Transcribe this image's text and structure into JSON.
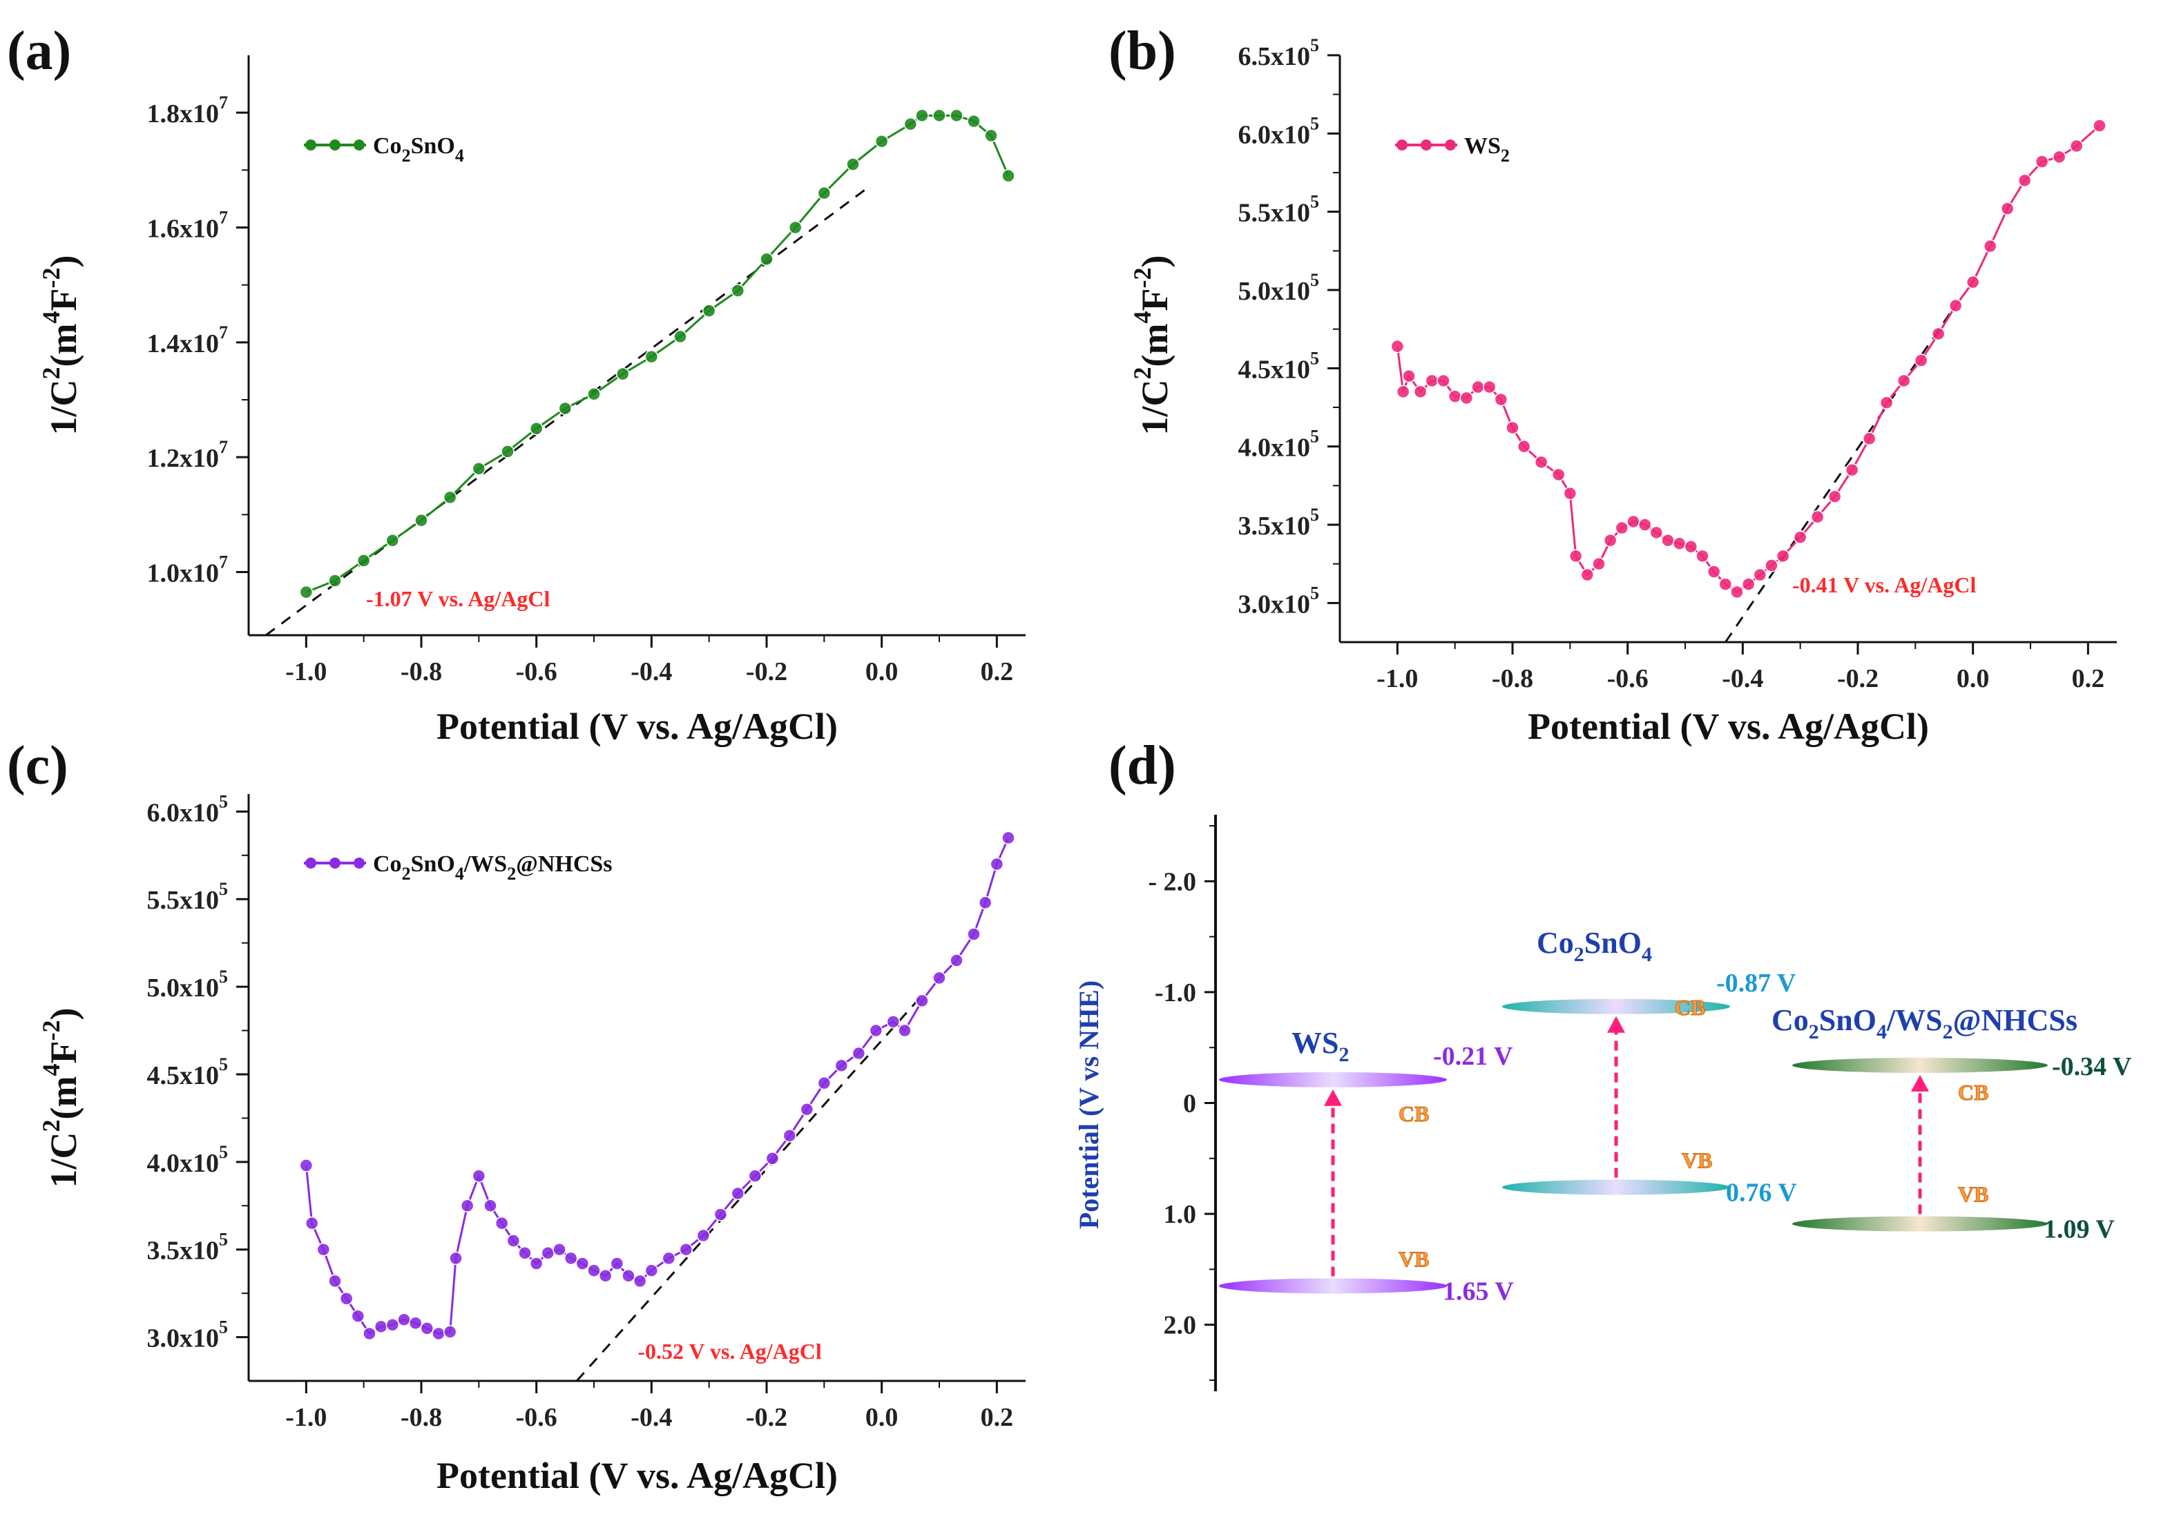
{
  "figure_labels": [
    "(a)",
    "(b)",
    "(c)",
    "(d)"
  ],
  "x_axis_label": "Potential (V vs. Ag/AgCl)",
  "chart_data": [
    {
      "type": "scatter",
      "panel": "(a)",
      "title": "",
      "xlabel": "Potential (V vs. Ag/AgCl)",
      "ylabel": "1/C^2 (m^4F^-2)",
      "xlim": [
        -1.1,
        0.25
      ],
      "ylim": [
        8900000.0,
        19000000.0
      ],
      "xticks": [
        -1.0,
        -0.8,
        -0.6,
        -0.4,
        -0.2,
        0.0,
        0.2
      ],
      "xtick_labels": [
        "-1.0",
        "-0.8",
        "-0.6",
        "-0.4",
        "-0.2",
        "0.0",
        "0.2"
      ],
      "yticks": [
        10000000.0,
        12000000.0,
        14000000.0,
        16000000.0,
        18000000.0
      ],
      "ytick_labels": [
        {
          "m": "1.0x10",
          "e": "7"
        },
        {
          "m": "1.2x10",
          "e": "7"
        },
        {
          "m": "1.4x10",
          "e": "7"
        },
        {
          "m": "1.6x10",
          "e": "7"
        },
        {
          "m": "1.8x10",
          "e": "7"
        }
      ],
      "series": [
        {
          "name": "Co2SnO4",
          "legend": {
            "base": "Co",
            "sub1": "2",
            "mid": "SnO",
            "sub2": "4"
          },
          "color": "#1e8a1e",
          "points": [
            [
              -1.0,
              9650000.0
            ],
            [
              -0.95,
              9850000.0
            ],
            [
              -0.9,
              10200000.0
            ],
            [
              -0.85,
              10550000.0
            ],
            [
              -0.8,
              10900000.0
            ],
            [
              -0.75,
              11300000.0
            ],
            [
              -0.7,
              11800000.0
            ],
            [
              -0.65,
              12100000.0
            ],
            [
              -0.6,
              12500000.0
            ],
            [
              -0.55,
              12850000.0
            ],
            [
              -0.5,
              13100000.0
            ],
            [
              -0.45,
              13450000.0
            ],
            [
              -0.4,
              13750000.0
            ],
            [
              -0.35,
              14100000.0
            ],
            [
              -0.3,
              14550000.0
            ],
            [
              -0.25,
              14900000.0
            ],
            [
              -0.2,
              15450000.0
            ],
            [
              -0.15,
              16000000.0
            ],
            [
              -0.1,
              16600000.0
            ],
            [
              -0.05,
              17100000.0
            ],
            [
              0.0,
              17500000.0
            ],
            [
              0.05,
              17800000.0
            ],
            [
              0.07,
              17950000.0
            ],
            [
              0.1,
              17950000.0
            ],
            [
              0.13,
              17950000.0
            ],
            [
              0.16,
              17850000.0
            ],
            [
              0.19,
              17600000.0
            ],
            [
              0.22,
              16900000.0
            ]
          ]
        }
      ],
      "fit_line": [
        [
          -1.07,
          8900000.0
        ],
        [
          -0.03,
          16650000.0
        ]
      ],
      "annotation": "-1.07 V vs. Ag/AgCl",
      "legend_position": "top-left"
    },
    {
      "type": "scatter",
      "panel": "(b)",
      "title": "",
      "xlabel": "Potential (V vs. Ag/AgCl)",
      "ylabel": "1/C^2 (m^4F^-2)",
      "xlim": [
        -1.1,
        0.25
      ],
      "ylim": [
        275000.0,
        650000.0
      ],
      "xticks": [
        -1.0,
        -0.8,
        -0.6,
        -0.4,
        -0.2,
        0.0,
        0.2
      ],
      "xtick_labels": [
        "-1.0",
        "-0.8",
        "-0.6",
        "-0.4",
        "-0.2",
        "0.0",
        "0.2"
      ],
      "yticks": [
        300000.0,
        350000.0,
        400000.0,
        450000.0,
        500000.0,
        550000.0,
        600000.0,
        650000.0
      ],
      "ytick_labels": [
        {
          "m": "3.0x10",
          "e": "5"
        },
        {
          "m": "3.5x10",
          "e": "5"
        },
        {
          "m": "4.0x10",
          "e": "5"
        },
        {
          "m": "4.5x10",
          "e": "5"
        },
        {
          "m": "5.0x10",
          "e": "5"
        },
        {
          "m": "5.5x10",
          "e": "5"
        },
        {
          "m": "6.0x10",
          "e": "5"
        },
        {
          "m": "6.5x10",
          "e": "5"
        }
      ],
      "series": [
        {
          "name": "WS2",
          "legend": {
            "base": "WS",
            "sub1": "2",
            "mid": "",
            "sub2": ""
          },
          "color": "#ee2a7b",
          "points": [
            [
              -1.0,
              464000.0
            ],
            [
              -0.99,
              435000.0
            ],
            [
              -0.98,
              445000.0
            ],
            [
              -0.96,
              435000.0
            ],
            [
              -0.94,
              442000.0
            ],
            [
              -0.92,
              442000.0
            ],
            [
              -0.9,
              432000.0
            ],
            [
              -0.88,
              431000.0
            ],
            [
              -0.86,
              438000.0
            ],
            [
              -0.84,
              438000.0
            ],
            [
              -0.82,
              430000.0
            ],
            [
              -0.8,
              412000.0
            ],
            [
              -0.78,
              400000.0
            ],
            [
              -0.75,
              390000.0
            ],
            [
              -0.72,
              382000.0
            ],
            [
              -0.7,
              370000.0
            ],
            [
              -0.69,
              330000.0
            ],
            [
              -0.67,
              318000.0
            ],
            [
              -0.65,
              325000.0
            ],
            [
              -0.63,
              340000.0
            ],
            [
              -0.61,
              348000.0
            ],
            [
              -0.59,
              352000.0
            ],
            [
              -0.57,
              350000.0
            ],
            [
              -0.55,
              345000.0
            ],
            [
              -0.53,
              340000.0
            ],
            [
              -0.51,
              338000.0
            ],
            [
              -0.49,
              336000.0
            ],
            [
              -0.47,
              330000.0
            ],
            [
              -0.45,
              320000.0
            ],
            [
              -0.43,
              312000.0
            ],
            [
              -0.41,
              307000.0
            ],
            [
              -0.39,
              312000.0
            ],
            [
              -0.37,
              318000.0
            ],
            [
              -0.35,
              324000.0
            ],
            [
              -0.33,
              330000.0
            ],
            [
              -0.3,
              342000.0
            ],
            [
              -0.27,
              355000.0
            ],
            [
              -0.24,
              368000.0
            ],
            [
              -0.21,
              385000.0
            ],
            [
              -0.18,
              405000.0
            ],
            [
              -0.15,
              428000.0
            ],
            [
              -0.12,
              442000.0
            ],
            [
              -0.09,
              455000.0
            ],
            [
              -0.06,
              472000.0
            ],
            [
              -0.03,
              490000.0
            ],
            [
              0.0,
              505000.0
            ],
            [
              0.03,
              528000.0
            ],
            [
              0.06,
              552000.0
            ],
            [
              0.09,
              570000.0
            ],
            [
              0.12,
              582000.0
            ],
            [
              0.15,
              585000.0
            ],
            [
              0.18,
              592000.0
            ],
            [
              0.22,
              605000.0
            ]
          ]
        }
      ],
      "fit_line": [
        [
          -0.43,
          275000.0
        ],
        [
          -0.04,
          485000.0
        ]
      ],
      "annotation": "-0.41 V vs. Ag/AgCl",
      "legend_position": "top-left"
    },
    {
      "type": "scatter",
      "panel": "(c)",
      "title": "",
      "xlabel": "Potential (V vs. Ag/AgCl)",
      "ylabel": "1/C^2 (m^4F^-2)",
      "xlim": [
        -1.1,
        0.25
      ],
      "ylim": [
        275000.0,
        610000.0
      ],
      "xticks": [
        -1.0,
        -0.8,
        -0.6,
        -0.4,
        -0.2,
        0.0,
        0.2
      ],
      "xtick_labels": [
        "-1.0",
        "-0.8",
        "-0.6",
        "-0.4",
        "-0.2",
        "0.0",
        "0.2"
      ],
      "yticks": [
        300000.0,
        350000.0,
        400000.0,
        450000.0,
        500000.0,
        550000.0,
        600000.0
      ],
      "ytick_labels": [
        {
          "m": "3.0x10",
          "e": "5"
        },
        {
          "m": "3.5x10",
          "e": "5"
        },
        {
          "m": "4.0x10",
          "e": "5"
        },
        {
          "m": "4.5x10",
          "e": "5"
        },
        {
          "m": "5.0x10",
          "e": "5"
        },
        {
          "m": "5.5x10",
          "e": "5"
        },
        {
          "m": "6.0x10",
          "e": "5"
        }
      ],
      "series": [
        {
          "name": "Co2SnO4/WS2@NHCSs",
          "legend": {
            "base": "Co",
            "sub1": "2",
            "mid": "SnO",
            "sub2": "4",
            "tail": "/WS",
            "sub3": "2",
            "end": "@NHCSs"
          },
          "color": "#8a2be2",
          "points": [
            [
              -1.0,
              398000.0
            ],
            [
              -0.99,
              365000.0
            ],
            [
              -0.97,
              350000.0
            ],
            [
              -0.95,
              332000.0
            ],
            [
              -0.93,
              322000.0
            ],
            [
              -0.91,
              312000.0
            ],
            [
              -0.89,
              302000.0
            ],
            [
              -0.87,
              306000.0
            ],
            [
              -0.85,
              307000.0
            ],
            [
              -0.83,
              310000.0
            ],
            [
              -0.81,
              308000.0
            ],
            [
              -0.79,
              305000.0
            ],
            [
              -0.77,
              302000.0
            ],
            [
              -0.75,
              303000.0
            ],
            [
              -0.74,
              345000.0
            ],
            [
              -0.72,
              375000.0
            ],
            [
              -0.7,
              392000.0
            ],
            [
              -0.68,
              375000.0
            ],
            [
              -0.66,
              365000.0
            ],
            [
              -0.64,
              355000.0
            ],
            [
              -0.62,
              348000.0
            ],
            [
              -0.6,
              342000.0
            ],
            [
              -0.58,
              348000.0
            ],
            [
              -0.56,
              350000.0
            ],
            [
              -0.54,
              345000.0
            ],
            [
              -0.52,
              342000.0
            ],
            [
              -0.5,
              338000.0
            ],
            [
              -0.48,
              335000.0
            ],
            [
              -0.46,
              342000.0
            ],
            [
              -0.44,
              335000.0
            ],
            [
              -0.42,
              332000.0
            ],
            [
              -0.4,
              338000.0
            ],
            [
              -0.37,
              345000.0
            ],
            [
              -0.34,
              350000.0
            ],
            [
              -0.31,
              358000.0
            ],
            [
              -0.28,
              370000.0
            ],
            [
              -0.25,
              382000.0
            ],
            [
              -0.22,
              392000.0
            ],
            [
              -0.19,
              402000.0
            ],
            [
              -0.16,
              415000.0
            ],
            [
              -0.13,
              430000.0
            ],
            [
              -0.1,
              445000.0
            ],
            [
              -0.07,
              455000.0
            ],
            [
              -0.04,
              462000.0
            ],
            [
              -0.01,
              475000.0
            ],
            [
              0.02,
              480000.0
            ],
            [
              0.04,
              475000.0
            ],
            [
              0.07,
              492000.0
            ],
            [
              0.1,
              505000.0
            ],
            [
              0.13,
              515000.0
            ],
            [
              0.16,
              530000.0
            ],
            [
              0.18,
              548000.0
            ],
            [
              0.2,
              570000.0
            ],
            [
              0.22,
              585000.0
            ]
          ]
        }
      ],
      "fit_line": [
        [
          -0.53,
          275000.0
        ],
        [
          0.07,
          495000.0
        ]
      ],
      "annotation": "-0.52 V vs. Ag/AgCl",
      "legend_position": "top-left"
    }
  ],
  "band_diagram": {
    "panel": "(d)",
    "ylabel": "Potential (V vs NHE)",
    "ylim": [
      -2.6,
      2.6
    ],
    "yticks": [
      -2.0,
      -1.0,
      0,
      1.0,
      2.0
    ],
    "ytick_labels": [
      "- 2.0",
      "-1.0",
      "0",
      "1.0",
      "2.0"
    ],
    "materials": [
      {
        "name": "WS2",
        "label": {
          "base": "WS",
          "sub": "2",
          "rest": ""
        },
        "cb_value": -0.21,
        "vb_value": 1.65,
        "cb_text": "-0.21 V",
        "vb_text": "1.65 V",
        "cb_tag": "CB",
        "vb_tag": "VB",
        "color": "#9b30ff",
        "text_color": "#8a2be2",
        "name_color": "#1f3fb0"
      },
      {
        "name": "Co2SnO4",
        "label": {
          "base": "Co",
          "sub": "2",
          "rest": "SnO",
          "sub2": "4"
        },
        "cb_value": -0.87,
        "vb_value": 0.76,
        "cb_text": "-0.87 V",
        "vb_text": "0.76 V",
        "cb_tag": "CB",
        "vb_tag": "VB",
        "color": "#20b2aa",
        "text_color": "#1a9ad6",
        "name_color": "#1f3fb0"
      },
      {
        "name": "Co2SnO4/WS2@NHCSs",
        "label": {
          "base": "Co",
          "sub": "2",
          "rest": "SnO",
          "sub2": "4",
          "tail": "/WS",
          "sub3": "2",
          "end": "@NHCSs"
        },
        "cb_value": -0.34,
        "vb_value": 1.09,
        "cb_text": "-0.34 V",
        "vb_text": "1.09 V",
        "cb_tag": "CB",
        "vb_tag": "VB",
        "color": "#1f7a2e",
        "text_color": "#0f4f3f",
        "name_color": "#1f3fb0"
      }
    ],
    "arrow_color": "#ff1f7a",
    "tag_color": "#ff9a3c"
  }
}
